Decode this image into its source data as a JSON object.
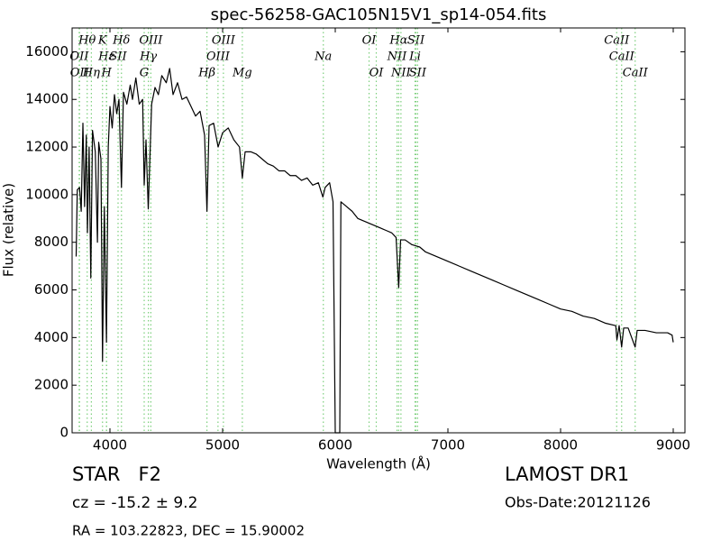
{
  "chart_data": {
    "type": "line",
    "title": "spec-56258-GAC105N15V1_sp14-054.fits",
    "x_label": "Wavelength (Å)",
    "y_label": "Flux (relative)",
    "info": {
      "class": "STAR   F2",
      "redshift": "cz = -15.2 ± 9.2",
      "coords": "RA = 103.22823, DEC = 15.90002",
      "survey": "LAMOST DR1",
      "obs_date": "Obs-Date:20121126"
    },
    "xlim": [
      3664,
      9104
    ],
    "ylim": [
      0,
      17000
    ],
    "xticks": [
      4000,
      5000,
      6000,
      7000,
      8000,
      9000
    ],
    "yticks": [
      0,
      2000,
      4000,
      6000,
      8000,
      10000,
      12000,
      14000,
      16000
    ],
    "line_color": "#000000",
    "marker_color": "#7ccf7c",
    "line_labels": [
      [
        {
          "label": "Hθ",
          "x": 3798
        },
        {
          "label": "K",
          "x": 3934
        },
        {
          "label": "Hδ",
          "x": 4102
        },
        {
          "label": "OIII",
          "x": 4363
        },
        {
          "label": "OIII",
          "x": 5007
        },
        {
          "label": "OI",
          "x": 6300
        },
        {
          "label": "Hα",
          "x": 6563
        },
        {
          "label": "SII",
          "x": 6716
        },
        {
          "label": "CaII",
          "x": 8498
        }
      ],
      [
        {
          "label": "OII",
          "x": 3727
        },
        {
          "label": "Hε",
          "x": 3970
        },
        {
          "label": "SII",
          "x": 4072
        },
        {
          "label": "Hγ",
          "x": 4341
        },
        {
          "label": "OIII",
          "x": 4959
        },
        {
          "label": "Na",
          "x": 5894
        },
        {
          "label": "NII",
          "x": 6548
        },
        {
          "label": "Li",
          "x": 6708
        },
        {
          "label": "CaII",
          "x": 8542
        }
      ],
      [
        {
          "label": "OII",
          "x": 3730
        },
        {
          "label": "Hη",
          "x": 3835
        },
        {
          "label": "H",
          "x": 3969
        },
        {
          "label": "G",
          "x": 4304
        },
        {
          "label": "Hβ",
          "x": 4861
        },
        {
          "label": "Mg",
          "x": 5175
        },
        {
          "label": "OI",
          "x": 6364
        },
        {
          "label": "NII",
          "x": 6583
        },
        {
          "label": "SII",
          "x": 6731
        },
        {
          "label": "CaII",
          "x": 8662
        }
      ]
    ],
    "x": [
      3700,
      3710,
      3730,
      3745,
      3760,
      3775,
      3790,
      3800,
      3815,
      3830,
      3845,
      3870,
      3889,
      3900,
      3920,
      3934,
      3950,
      3969,
      3985,
      4000,
      4020,
      4040,
      4060,
      4080,
      4102,
      4120,
      4150,
      4180,
      4200,
      4230,
      4260,
      4290,
      4304,
      4320,
      4340,
      4370,
      4400,
      4430,
      4460,
      4500,
      4530,
      4560,
      4600,
      4640,
      4680,
      4720,
      4760,
      4800,
      4840,
      4861,
      4880,
      4920,
      4960,
      5000,
      5050,
      5100,
      5150,
      5175,
      5200,
      5250,
      5300,
      5350,
      5400,
      5450,
      5500,
      5550,
      5600,
      5650,
      5700,
      5750,
      5800,
      5850,
      5890,
      5910,
      5950,
      5980,
      6000,
      6040,
      6050,
      6100,
      6150,
      6200,
      6250,
      6300,
      6350,
      6400,
      6450,
      6500,
      6540,
      6563,
      6580,
      6620,
      6680,
      6750,
      6800,
      6900,
      7000,
      7100,
      7200,
      7300,
      7400,
      7500,
      7600,
      7700,
      7800,
      7900,
      8000,
      8100,
      8200,
      8300,
      8400,
      8490,
      8500,
      8520,
      8542,
      8560,
      8600,
      8662,
      8680,
      8750,
      8850,
      8950,
      8990,
      9000
    ],
    "values": [
      7400,
      10200,
      10300,
      9300,
      13000,
      9500,
      12500,
      8400,
      12000,
      6500,
      12700,
      11800,
      8000,
      12200,
      11500,
      3000,
      9500,
      3800,
      12000,
      13700,
      12800,
      14200,
      13400,
      14000,
      10300,
      14300,
      13800,
      14600,
      14000,
      14900,
      13800,
      14000,
      10400,
      12300,
      9400,
      13800,
      14500,
      14200,
      15000,
      14700,
      15300,
      14200,
      14700,
      14000,
      14100,
      13700,
      13300,
      13500,
      12500,
      9300,
      12900,
      13000,
      12000,
      12600,
      12800,
      12300,
      12000,
      10700,
      11800,
      11800,
      11700,
      11500,
      11300,
      11200,
      11000,
      11000,
      10800,
      10800,
      10600,
      10700,
      10400,
      10500,
      9900,
      10300,
      10500,
      9700,
      0,
      0,
      9700,
      9500,
      9300,
      9000,
      8900,
      8800,
      8700,
      8600,
      8500,
      8400,
      8200,
      6100,
      8100,
      8100,
      7900,
      7800,
      7600,
      7400,
      7200,
      7000,
      6800,
      6600,
      6400,
      6200,
      6000,
      5800,
      5600,
      5400,
      5200,
      5100,
      4900,
      4800,
      4600,
      4500,
      3900,
      4500,
      3600,
      4400,
      4400,
      3600,
      4300,
      4300,
      4200,
      4200,
      4100,
      3800
    ]
  }
}
